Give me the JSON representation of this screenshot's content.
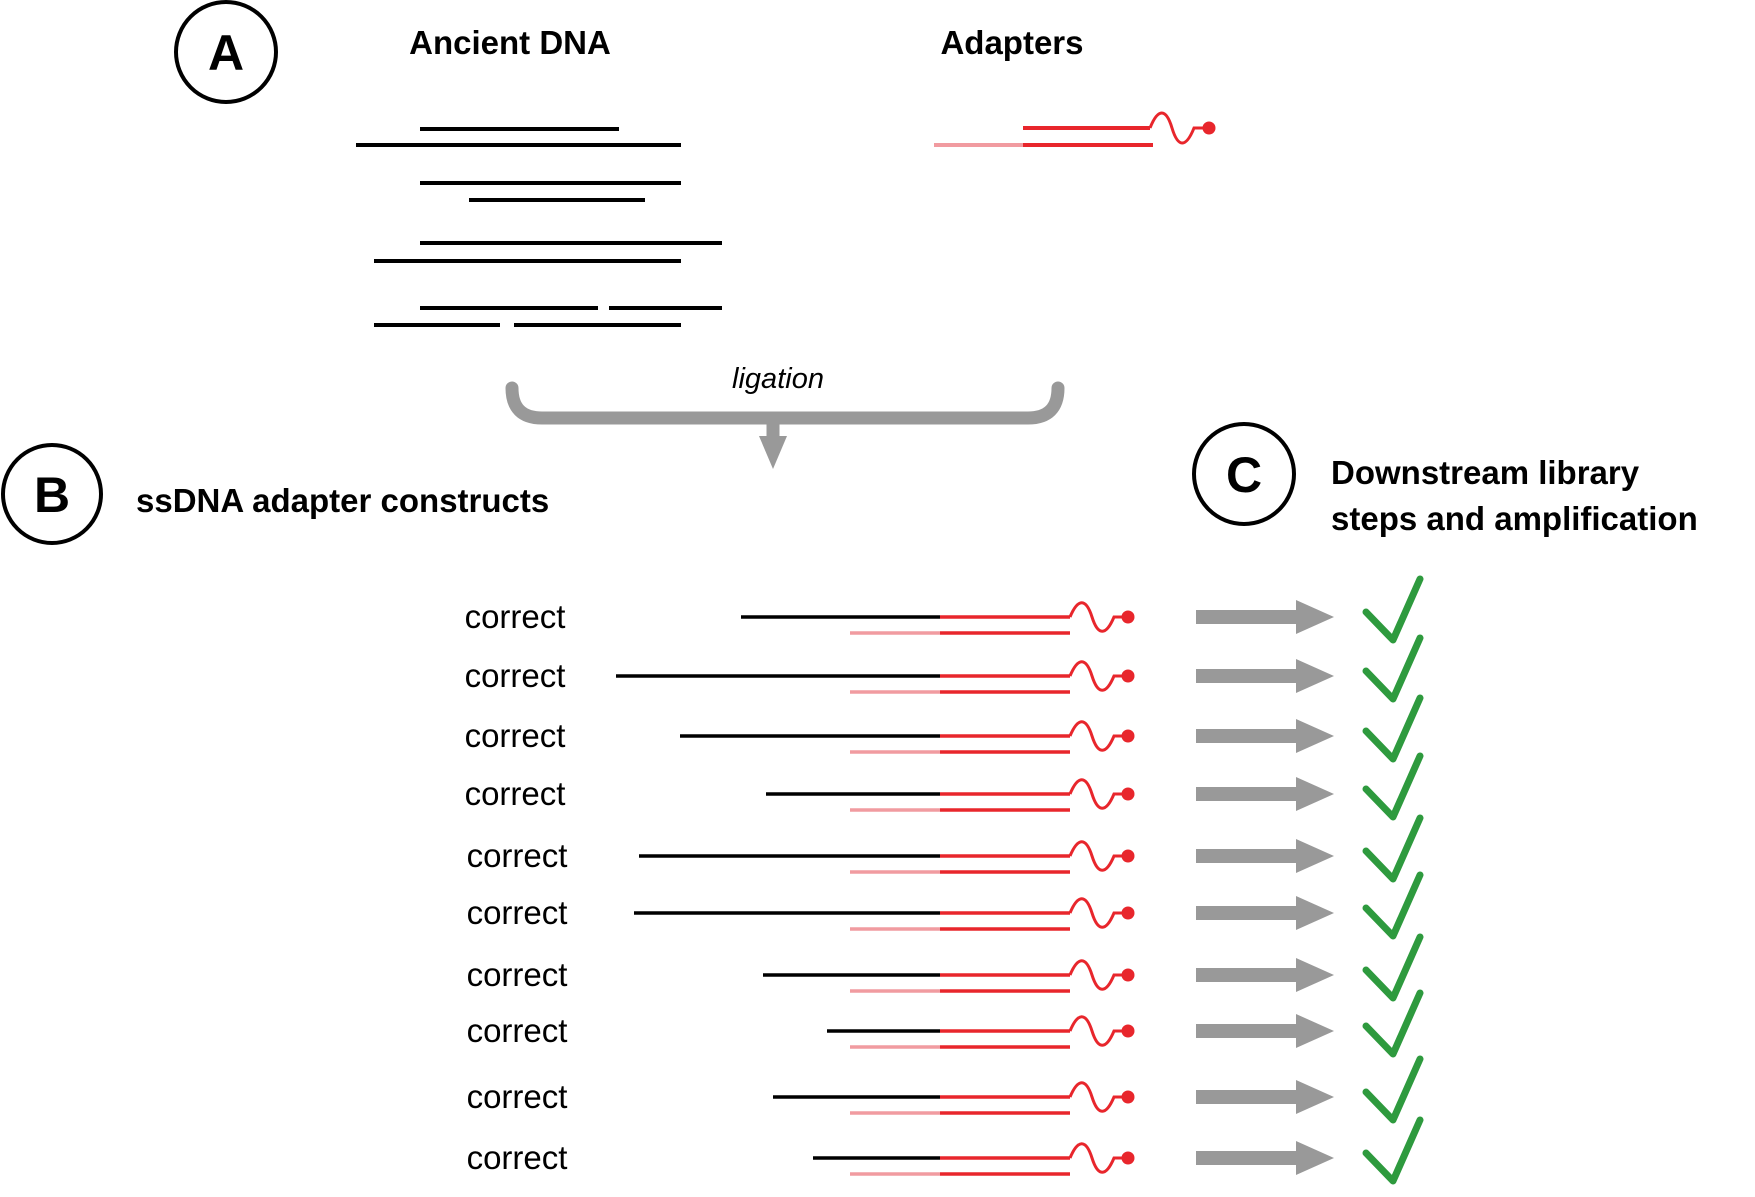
{
  "panel_a": {
    "letter": "A",
    "ancient_dna_heading": "Ancient DNA",
    "adapters_heading": "Adapters"
  },
  "ligation_label": "ligation",
  "panel_b": {
    "letter": "B",
    "heading": "ssDNA adapter constructs"
  },
  "panel_c": {
    "letter": "C",
    "heading_line1": "Downstream library",
    "heading_line2": "steps and amplification"
  },
  "constructs": [
    {
      "label": "correct",
      "result": "check-icon"
    },
    {
      "label": "correct",
      "result": "check-icon"
    },
    {
      "label": "correct",
      "result": "check-icon"
    },
    {
      "label": "correct",
      "result": "check-icon"
    },
    {
      "label": "correct",
      "result": "check-icon"
    },
    {
      "label": "correct",
      "result": "check-icon"
    },
    {
      "label": "correct",
      "result": "check-icon"
    },
    {
      "label": "correct",
      "result": "check-icon"
    },
    {
      "label": "correct",
      "result": "check-icon"
    },
    {
      "label": "correct",
      "result": "check-icon"
    }
  ],
  "colors": {
    "dna": "#000000",
    "adapter": "#e8262c",
    "adapter_light": "#f19ba0",
    "arrow": "#999999",
    "check": "#2e9a3e"
  }
}
